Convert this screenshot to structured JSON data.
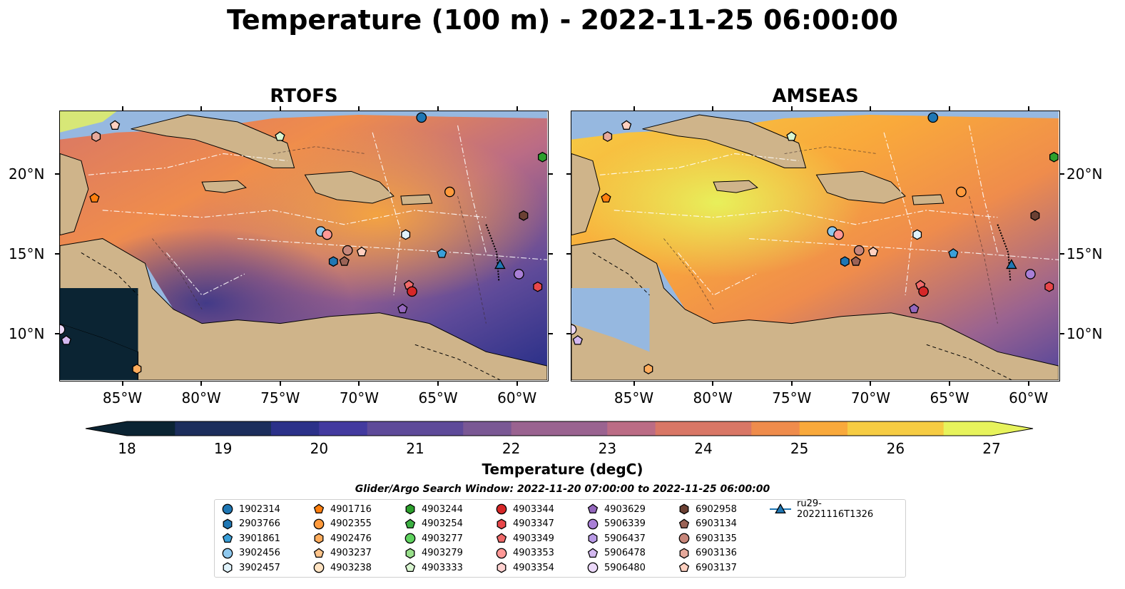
{
  "title": "Temperature (100 m) - 2022-11-25 06:00:00",
  "maps": [
    {
      "id": "rtofs",
      "title": "RTOFS"
    },
    {
      "id": "amseas",
      "title": "AMSEAS"
    }
  ],
  "axes": {
    "lon_ticks": [
      "85°W",
      "80°W",
      "75°W",
      "70°W",
      "65°W",
      "60°W"
    ],
    "lat_ticks": [
      "20°N",
      "15°N",
      "10°N"
    ],
    "lon_range": [
      -89,
      -58
    ],
    "lat_range": [
      7,
      24
    ]
  },
  "colorbar": {
    "label": "Temperature (degC)",
    "ticks": [
      "18",
      "19",
      "20",
      "21",
      "22",
      "23",
      "24",
      "25",
      "26",
      "27"
    ],
    "range": [
      18,
      27
    ],
    "colormap": "thermal",
    "colors": [
      "#0b2433",
      "#1c2e5c",
      "#2c3189",
      "#433a9f",
      "#5e4a99",
      "#7a5894",
      "#9a6390",
      "#bb6c85",
      "#d97766",
      "#ef8c4c",
      "#f9a93b",
      "#f6cc43",
      "#e7f35c"
    ]
  },
  "legend": {
    "subtitle": "Glider/Argo Search Window: 2022-11-20 07:00:00 to 2022-11-25 06:00:00",
    "items": [
      {
        "label": "1902314",
        "shape": "circle",
        "color": "#1f77b4"
      },
      {
        "label": "2903766",
        "shape": "hexagon",
        "color": "#1f77b4"
      },
      {
        "label": "3901861",
        "shape": "pentagon",
        "color": "#3a9fd8"
      },
      {
        "label": "3902456",
        "shape": "circle",
        "color": "#8ec8ee"
      },
      {
        "label": "3902457",
        "shape": "hexagon",
        "color": "#dff2fb"
      },
      {
        "label": "4901716",
        "shape": "pentagon",
        "color": "#ff7f0e"
      },
      {
        "label": "4902355",
        "shape": "circle",
        "color": "#ff9a3c"
      },
      {
        "label": "4902476",
        "shape": "hexagon",
        "color": "#ffac5c"
      },
      {
        "label": "4903237",
        "shape": "pentagon",
        "color": "#ffc48a"
      },
      {
        "label": "4903238",
        "shape": "circle",
        "color": "#ffe3c2"
      },
      {
        "label": "4903244",
        "shape": "hexagon",
        "color": "#2ca02c"
      },
      {
        "label": "4903254",
        "shape": "pentagon",
        "color": "#3cb043"
      },
      {
        "label": "4903277",
        "shape": "circle",
        "color": "#5fd35f"
      },
      {
        "label": "4903279",
        "shape": "hexagon",
        "color": "#98df8a"
      },
      {
        "label": "4903333",
        "shape": "pentagon",
        "color": "#d8f5d0"
      },
      {
        "label": "4903344",
        "shape": "circle",
        "color": "#d62728"
      },
      {
        "label": "4903347",
        "shape": "hexagon",
        "color": "#e8474a"
      },
      {
        "label": "4903349",
        "shape": "pentagon",
        "color": "#f06a6a"
      },
      {
        "label": "4903353",
        "shape": "circle",
        "color": "#ff9896"
      },
      {
        "label": "4903354",
        "shape": "hexagon",
        "color": "#ffd2d1"
      },
      {
        "label": "4903629",
        "shape": "pentagon",
        "color": "#9467bd"
      },
      {
        "label": "5906339",
        "shape": "circle",
        "color": "#a97fd6"
      },
      {
        "label": "5906437",
        "shape": "hexagon",
        "color": "#b99ae6"
      },
      {
        "label": "5906478",
        "shape": "pentagon",
        "color": "#d3b8f0"
      },
      {
        "label": "5906480",
        "shape": "circle",
        "color": "#ecd9fa"
      },
      {
        "label": "6902958",
        "shape": "hexagon",
        "color": "#6b4033"
      },
      {
        "label": "6903134",
        "shape": "pentagon",
        "color": "#9b6356"
      },
      {
        "label": "6903135",
        "shape": "circle",
        "color": "#c7867a"
      },
      {
        "label": "6903136",
        "shape": "hexagon",
        "color": "#e6a99b"
      },
      {
        "label": "6903137",
        "shape": "pentagon",
        "color": "#ffd0c0"
      },
      {
        "label": "ru29-20221116T1326",
        "shape": "triangle-line",
        "color": "#1f77b4"
      }
    ]
  },
  "markers": [
    {
      "id": "1902314",
      "lon": -66,
      "lat": 23.6
    },
    {
      "id": "6903137",
      "lon": -85.5,
      "lat": 23.1
    },
    {
      "id": "6903136",
      "lon": -86.7,
      "lat": 22.4
    },
    {
      "id": "4903333",
      "lon": -75,
      "lat": 22.4
    },
    {
      "id": "4903244",
      "lon": -58.3,
      "lat": 21.1
    },
    {
      "id": "4901716",
      "lon": -86.8,
      "lat": 18.5
    },
    {
      "id": "4902355",
      "lon": -64.2,
      "lat": 18.9
    },
    {
      "id": "6902958",
      "lon": -59.5,
      "lat": 17.4
    },
    {
      "id": "3902456",
      "lon": -72.4,
      "lat": 16.4
    },
    {
      "id": "4903353",
      "lon": -72,
      "lat": 16.2
    },
    {
      "id": "3902457",
      "lon": -67,
      "lat": 16.2
    },
    {
      "id": "6903135",
      "lon": -70.7,
      "lat": 15.2
    },
    {
      "id": "6903137",
      "lon": -69.8,
      "lat": 15.1
    },
    {
      "id": "3901861",
      "lon": -64.7,
      "lat": 15
    },
    {
      "id": "2903766",
      "lon": -71.6,
      "lat": 14.5
    },
    {
      "id": "6903134",
      "lon": -70.9,
      "lat": 14.5
    },
    {
      "id": "ru29-20221116T1326",
      "lon": -61,
      "lat": 14.3
    },
    {
      "id": "5906339",
      "lon": -59.8,
      "lat": 13.7
    },
    {
      "id": "4903349",
      "lon": -66.8,
      "lat": 13
    },
    {
      "id": "4903344",
      "lon": -66.6,
      "lat": 12.6
    },
    {
      "id": "4903347",
      "lon": -58.6,
      "lat": 12.9
    },
    {
      "id": "4903629",
      "lon": -67.2,
      "lat": 11.5
    },
    {
      "id": "5906480",
      "lon": -89,
      "lat": 10.2
    },
    {
      "id": "5906478",
      "lon": -88.6,
      "lat": 9.5
    },
    {
      "id": "4902476",
      "lon": -84.1,
      "lat": 7.7
    }
  ]
}
